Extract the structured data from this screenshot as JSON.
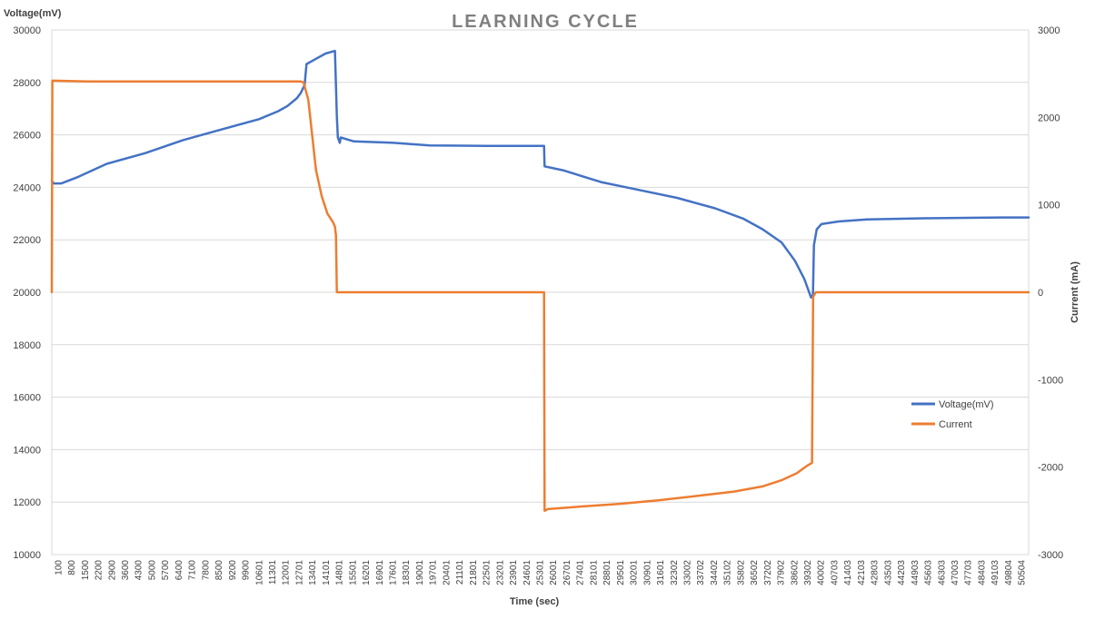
{
  "chart_data": {
    "type": "line",
    "title": "LEARNING CYCLE",
    "xlabel": "Time (sec)",
    "ylabel_left": "Voltage(mV)",
    "ylabel_right": "Current (mA)",
    "xlim": [
      100,
      51500
    ],
    "ylim_left": [
      10000,
      30000
    ],
    "ylim_right": [
      -3000,
      3000
    ],
    "yticks_left": [
      10000,
      12000,
      14000,
      16000,
      18000,
      20000,
      22000,
      24000,
      26000,
      28000,
      30000
    ],
    "yticks_right": [
      -3000,
      -2000,
      -1000,
      0,
      1000,
      2000,
      3000
    ],
    "x_tick_labels": [
      "100",
      "800",
      "1500",
      "2200",
      "2900",
      "3600",
      "4300",
      "5000",
      "5700",
      "6400",
      "7100",
      "7800",
      "8500",
      "9200",
      "9900",
      "10601",
      "11301",
      "12001",
      "12701",
      "13401",
      "14101",
      "14801",
      "15501",
      "16201",
      "16901",
      "17601",
      "18301",
      "19001",
      "19701",
      "20401",
      "21101",
      "21801",
      "22501",
      "23201",
      "23901",
      "24601",
      "25301",
      "26001",
      "26701",
      "27401",
      "28101",
      "28801",
      "29501",
      "30201",
      "30901",
      "31601",
      "32302",
      "33002",
      "33702",
      "34402",
      "35102",
      "35802",
      "36502",
      "37202",
      "37902",
      "38602",
      "39302",
      "40002",
      "40703",
      "41403",
      "42103",
      "42803",
      "43503",
      "44203",
      "44903",
      "45603",
      "46303",
      "47003",
      "47703",
      "48403",
      "49103",
      "49804",
      "50504"
    ],
    "grid": true,
    "legend_position": "right",
    "series": [
      {
        "name": "Voltage(mV)",
        "axis": "left",
        "color": "#4472c4",
        "x": [
          100,
          200,
          600,
          1500,
          3000,
          5000,
          7000,
          9000,
          11000,
          12000,
          12500,
          13000,
          13200,
          13400,
          13500,
          14000,
          14500,
          15000,
          15100,
          15150,
          15250,
          15300,
          16000,
          18000,
          19000,
          20000,
          23000,
          26001,
          26030,
          27000,
          29000,
          31000,
          33000,
          35000,
          36500,
          37500,
          38500,
          39200,
          39700,
          40050,
          40150,
          40200,
          40350,
          40600,
          41500,
          43000,
          46000,
          50000,
          51500
        ],
        "y": [
          24250,
          24150,
          24150,
          24400,
          24900,
          25300,
          25800,
          26200,
          26600,
          26900,
          27100,
          27400,
          27600,
          27900,
          28700,
          28900,
          29100,
          29200,
          26700,
          25900,
          25700,
          25900,
          25750,
          25700,
          25650,
          25600,
          25580,
          25580,
          24800,
          24650,
          24200,
          23900,
          23600,
          23200,
          22800,
          22400,
          21900,
          21200,
          20500,
          19800,
          19900,
          21800,
          22400,
          22600,
          22700,
          22780,
          22820,
          22850,
          22850
        ]
      },
      {
        "name": "Current",
        "axis": "right",
        "color": "#ed7d31",
        "x": [
          100,
          130,
          200,
          2000,
          8000,
          13200,
          13350,
          13600,
          13800,
          14000,
          14300,
          14600,
          14900,
          15000,
          15050,
          15100,
          26000,
          26030,
          26200,
          28000,
          30000,
          32000,
          34000,
          36000,
          37500,
          38500,
          39300,
          39800,
          40100,
          40160,
          40300,
          45000,
          51500
        ],
        "y": [
          0,
          2420,
          2420,
          2410,
          2410,
          2410,
          2400,
          2200,
          1800,
          1400,
          1100,
          900,
          800,
          750,
          650,
          0,
          0,
          -2500,
          -2480,
          -2450,
          -2420,
          -2380,
          -2330,
          -2280,
          -2220,
          -2150,
          -2070,
          -1990,
          -1950,
          -50,
          0,
          0,
          0
        ]
      }
    ]
  }
}
